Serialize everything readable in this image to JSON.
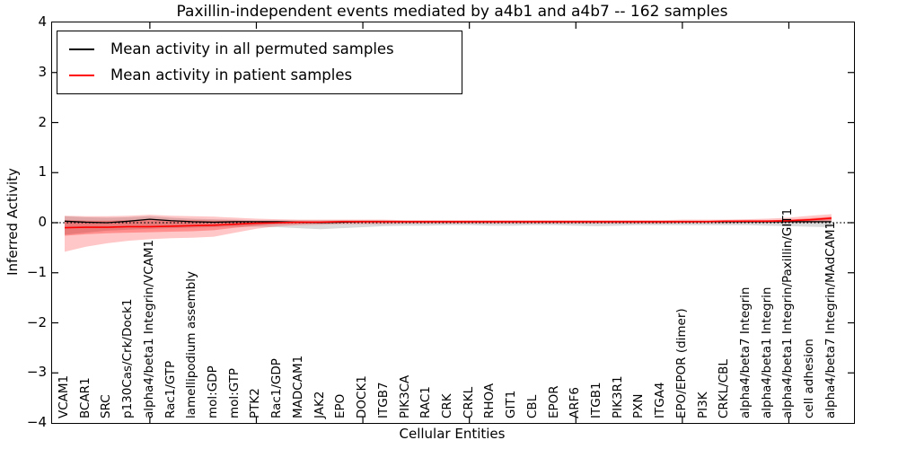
{
  "title": "Paxillin-independent events mediated by a4b1 and a4b7 -- 162 samples",
  "legend": {
    "entries": [
      {
        "label": "Mean activity in all permuted samples",
        "color": "#000000"
      },
      {
        "label": "Mean activity in patient samples",
        "color": "#ff0000"
      }
    ]
  },
  "axes": {
    "ylabel": "Inferred Activity",
    "xlabel": "Cellular Entities"
  },
  "chart_data": {
    "type": "line",
    "title": "Paxillin-independent events mediated by a4b1 and a4b7 -- 162 samples",
    "xlabel": "Cellular Entities",
    "ylabel": "Inferred Activity",
    "ylim": [
      -4,
      4
    ],
    "grid": false,
    "legend_position": "upper left",
    "zero_line_style": "black dotted",
    "ytick_labels": [
      "4",
      "3",
      "2",
      "1",
      "0",
      "−1",
      "−2",
      "−3",
      "−4"
    ],
    "ytick_values": [
      4,
      3,
      2,
      1,
      0,
      -1,
      -2,
      -3,
      -4
    ],
    "x_major_tick_indices": [
      4,
      9,
      14,
      19,
      24,
      29,
      34
    ],
    "categories": [
      "VCAM1",
      "BCAR1",
      "SRC",
      "p130Cas/Crk/Dock1",
      "alpha4/beta1 Integrin/VCAM1",
      "Rac1/GTP",
      "lamellipodium assembly",
      "mol:GDP",
      "mol:GTP",
      "PTK2",
      "Rac1/GDP",
      "MADCAM1",
      "JAK2",
      "EPO",
      "DOCK1",
      "ITGB7",
      "PIK3CA",
      "RAC1",
      "CRK",
      "CRKL",
      "RHOA",
      "GIT1",
      "CBL",
      "EPOR",
      "ARF6",
      "ITGB1",
      "PIK3R1",
      "PXN",
      "ITGA4",
      "EPO/EPOR (dimer)",
      "PI3K",
      "CRKL/CBL",
      "alpha4/beta7 Integrin",
      "alpha4/beta1 Integrin",
      "alpha4/beta1 Integrin/Paxillin/GIT1",
      "cell adhesion",
      "alpha4/beta7 Integrin/MAdCAM1"
    ],
    "series": [
      {
        "name": "Mean activity in all permuted samples",
        "color": "#000000",
        "values": [
          0.03,
          0.01,
          0.0,
          0.03,
          0.07,
          0.04,
          0.02,
          0.01,
          0.02,
          0.02,
          0.02,
          0.01,
          0.0,
          0.01,
          0.02,
          0.02,
          0.02,
          0.02,
          0.02,
          0.02,
          0.02,
          0.02,
          0.02,
          0.02,
          0.02,
          0.02,
          0.02,
          0.02,
          0.02,
          0.02,
          0.02,
          0.02,
          0.02,
          0.02,
          0.02,
          0.02,
          0.02
        ]
      },
      {
        "name": "Mean activity in patient samples",
        "color": "#ff0000",
        "values": [
          -0.1,
          -0.09,
          -0.09,
          -0.08,
          -0.08,
          -0.07,
          -0.06,
          -0.05,
          -0.03,
          -0.01,
          0.0,
          0.01,
          0.01,
          0.02,
          0.02,
          0.02,
          0.02,
          0.02,
          0.02,
          0.02,
          0.02,
          0.02,
          0.02,
          0.02,
          0.02,
          0.02,
          0.02,
          0.02,
          0.02,
          0.02,
          0.02,
          0.03,
          0.03,
          0.03,
          0.04,
          0.06,
          0.09
        ]
      }
    ],
    "bands": [
      {
        "name": "permuted-samples-range",
        "color": "rgba(0,0,0,0.15)",
        "upper": [
          0.13,
          0.11,
          0.1,
          0.11,
          0.13,
          0.1,
          0.08,
          0.07,
          0.06,
          0.05,
          0.05,
          0.05,
          0.05,
          0.05,
          0.05,
          0.05,
          0.04,
          0.04,
          0.04,
          0.04,
          0.04,
          0.04,
          0.04,
          0.04,
          0.04,
          0.04,
          0.04,
          0.04,
          0.04,
          0.04,
          0.04,
          0.04,
          0.04,
          0.05,
          0.05,
          0.06,
          0.07
        ],
        "lower": [
          -0.24,
          -0.2,
          -0.16,
          -0.14,
          -0.12,
          -0.11,
          -0.1,
          -0.09,
          -0.08,
          -0.08,
          -0.09,
          -0.11,
          -0.13,
          -0.11,
          -0.09,
          -0.07,
          -0.06,
          -0.06,
          -0.05,
          -0.05,
          -0.06,
          -0.06,
          -0.05,
          -0.05,
          -0.06,
          -0.07,
          -0.06,
          -0.05,
          -0.05,
          -0.05,
          -0.05,
          -0.05,
          -0.05,
          -0.06,
          -0.07,
          -0.08,
          -0.09
        ]
      },
      {
        "name": "patient-samples-range-outer",
        "color": "rgba(255,0,0,0.22)",
        "upper": [
          0.14,
          0.13,
          0.13,
          0.14,
          0.16,
          0.14,
          0.13,
          0.12,
          0.1,
          0.08,
          0.07,
          0.06,
          0.06,
          0.06,
          0.06,
          0.06,
          0.05,
          0.05,
          0.05,
          0.05,
          0.05,
          0.05,
          0.05,
          0.05,
          0.05,
          0.05,
          0.05,
          0.05,
          0.05,
          0.06,
          0.06,
          0.06,
          0.07,
          0.08,
          0.1,
          0.14,
          0.17
        ],
        "lower": [
          -0.58,
          -0.48,
          -0.41,
          -0.36,
          -0.33,
          -0.31,
          -0.3,
          -0.28,
          -0.2,
          -0.12,
          -0.07,
          -0.05,
          -0.04,
          -0.03,
          -0.03,
          -0.03,
          -0.02,
          -0.02,
          -0.02,
          -0.02,
          -0.02,
          -0.02,
          -0.02,
          -0.02,
          -0.02,
          -0.02,
          -0.02,
          -0.02,
          -0.02,
          -0.01,
          -0.01,
          -0.01,
          0.0,
          0.0,
          0.0,
          0.0,
          0.01
        ]
      },
      {
        "name": "patient-samples-range-inner",
        "color": "rgba(255,0,0,0.28)",
        "upper": [
          0.05,
          0.04,
          0.04,
          0.05,
          0.06,
          0.05,
          0.05,
          0.04,
          0.04,
          0.03,
          0.03,
          0.03,
          0.03,
          0.04,
          0.04,
          0.04,
          0.04,
          0.04,
          0.04,
          0.04,
          0.04,
          0.04,
          0.04,
          0.04,
          0.04,
          0.04,
          0.04,
          0.04,
          0.04,
          0.04,
          0.04,
          0.04,
          0.05,
          0.05,
          0.06,
          0.09,
          0.12
        ],
        "lower": [
          -0.26,
          -0.23,
          -0.21,
          -0.2,
          -0.19,
          -0.18,
          -0.17,
          -0.15,
          -0.1,
          -0.06,
          -0.03,
          -0.02,
          -0.01,
          0.0,
          0.0,
          0.0,
          0.0,
          0.0,
          0.0,
          0.0,
          0.0,
          0.0,
          0.0,
          0.0,
          0.0,
          0.0,
          0.0,
          0.0,
          0.0,
          0.0,
          0.01,
          0.01,
          0.01,
          0.01,
          0.02,
          0.03,
          0.05
        ]
      }
    ]
  }
}
